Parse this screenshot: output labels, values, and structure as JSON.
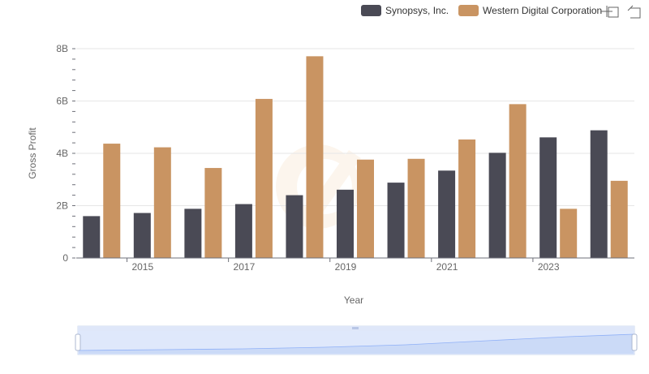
{
  "chart_data": {
    "type": "bar",
    "xlabel": "Year",
    "ylabel": "Gross Profit",
    "ylim": [
      0,
      8000000000
    ],
    "y_ticks": [
      0,
      2000000000,
      4000000000,
      6000000000,
      8000000000
    ],
    "y_tick_labels": [
      "0",
      "2B",
      "4B",
      "6B",
      "8B"
    ],
    "categories": [
      2014,
      2015,
      2016,
      2017,
      2018,
      2019,
      2020,
      2021,
      2022,
      2023,
      2024
    ],
    "x_tick_labels": [
      "2015",
      "2017",
      "2019",
      "2021",
      "2023"
    ],
    "x_tick_years": [
      2015,
      2017,
      2019,
      2021,
      2023
    ],
    "grid": true,
    "legend_position": "top-right",
    "series": [
      {
        "name": "Synopsys, Inc.",
        "color": "#4a4a55",
        "values": [
          1600000000,
          1720000000,
          1880000000,
          2060000000,
          2400000000,
          2610000000,
          2880000000,
          3340000000,
          4020000000,
          4610000000,
          4880000000
        ]
      },
      {
        "name": "Western Digital Corporation",
        "color": "#c99462",
        "values": [
          4370000000,
          4230000000,
          3440000000,
          6080000000,
          7710000000,
          3760000000,
          3790000000,
          4530000000,
          5880000000,
          1880000000,
          2950000000
        ]
      }
    ]
  },
  "toolbar": {
    "zoom_icon": "zoom-select-icon",
    "restore_icon": "restore-icon"
  }
}
